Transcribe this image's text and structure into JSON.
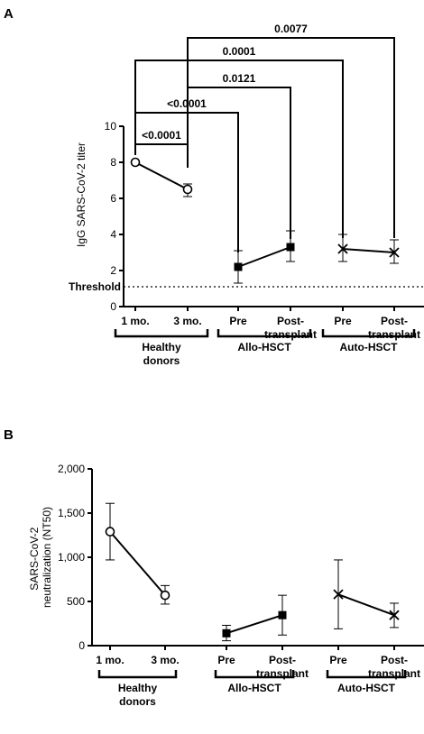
{
  "chart_data": [
    {
      "panel": "A",
      "type": "scatter",
      "ylabel": "IgG SARS-CoV-2 titer",
      "ylim": [
        0,
        10
      ],
      "yticks": [
        "0",
        "2",
        "4",
        "6",
        "8",
        "10"
      ],
      "threshold": {
        "label": "Threshold",
        "value": 1.1
      },
      "categories": [
        {
          "line1": "1 mo.",
          "line2": ""
        },
        {
          "line1": "3 mo.",
          "line2": ""
        },
        {
          "line1": "Pre",
          "line2": ""
        },
        {
          "line1": "Post-",
          "line2": "transplant"
        },
        {
          "line1": "Pre",
          "line2": ""
        },
        {
          "line1": "Post-",
          "line2": "transplant"
        }
      ],
      "groups": [
        {
          "line1": "Healthy",
          "line2": "donors",
          "from": 0,
          "to": 1
        },
        {
          "line1": "Allo-HSCT",
          "line2": "",
          "from": 2,
          "to": 3
        },
        {
          "line1": "Auto-HSCT",
          "line2": "",
          "from": 4,
          "to": 5
        }
      ],
      "series": [
        {
          "marker": "circle",
          "points": [
            {
              "x": 0,
              "y": 8.0,
              "low": 8.0,
              "high": 8.0
            },
            {
              "x": 1,
              "y": 6.5,
              "low": 6.1,
              "high": 6.8
            }
          ]
        },
        {
          "marker": "square",
          "points": [
            {
              "x": 2,
              "y": 2.2,
              "low": 1.3,
              "high": 3.1
            },
            {
              "x": 3,
              "y": 3.3,
              "low": 2.5,
              "high": 4.2
            }
          ]
        },
        {
          "marker": "cross",
          "points": [
            {
              "x": 4,
              "y": 3.2,
              "low": 2.5,
              "high": 4.0
            },
            {
              "x": 5,
              "y": 3.0,
              "low": 2.4,
              "high": 3.7
            }
          ]
        }
      ],
      "comparisons": [
        {
          "label": "<0.0001",
          "a": 0,
          "b": 1
        },
        {
          "label": "<0.0001",
          "a": 0,
          "b": 2
        },
        {
          "label": "0.0121",
          "a": 1,
          "b": 3
        },
        {
          "label": "0.0001",
          "a": 0,
          "b": 4
        },
        {
          "label": "0.0077",
          "a": 1,
          "b": 5
        }
      ]
    },
    {
      "panel": "B",
      "type": "scatter",
      "ylabel": "SARS-CoV-2 neutralization (NT50)",
      "ylim": [
        0,
        2000
      ],
      "yticks": [
        "0",
        "500",
        "1,000",
        "1,500",
        "2,000"
      ],
      "categories": [
        {
          "line1": "1 mo.",
          "line2": ""
        },
        {
          "line1": "3 mo.",
          "line2": ""
        },
        {
          "line1": "Pre",
          "line2": ""
        },
        {
          "line1": "Post-",
          "line2": "transplant"
        },
        {
          "line1": "Pre",
          "line2": ""
        },
        {
          "line1": "Post-",
          "line2": "transplant"
        }
      ],
      "groups": [
        {
          "line1": "Healthy",
          "line2": "donors",
          "from": 0,
          "to": 1
        },
        {
          "line1": "Allo-HSCT",
          "line2": "",
          "from": 2,
          "to": 3
        },
        {
          "line1": "Auto-HSCT",
          "line2": "",
          "from": 4,
          "to": 5
        }
      ],
      "series": [
        {
          "marker": "circle",
          "points": [
            {
              "x": 0,
              "y": 1290,
              "low": 970,
              "high": 1610
            },
            {
              "x": 1,
              "y": 570,
              "low": 470,
              "high": 680
            }
          ]
        },
        {
          "marker": "square",
          "points": [
            {
              "x": 2,
              "y": 140,
              "low": 55,
              "high": 230
            },
            {
              "x": 3,
              "y": 345,
              "low": 120,
              "high": 570
            }
          ]
        },
        {
          "marker": "cross",
          "points": [
            {
              "x": 4,
              "y": 580,
              "low": 190,
              "high": 970
            },
            {
              "x": 5,
              "y": 345,
              "low": 205,
              "high": 480
            }
          ]
        }
      ]
    }
  ]
}
